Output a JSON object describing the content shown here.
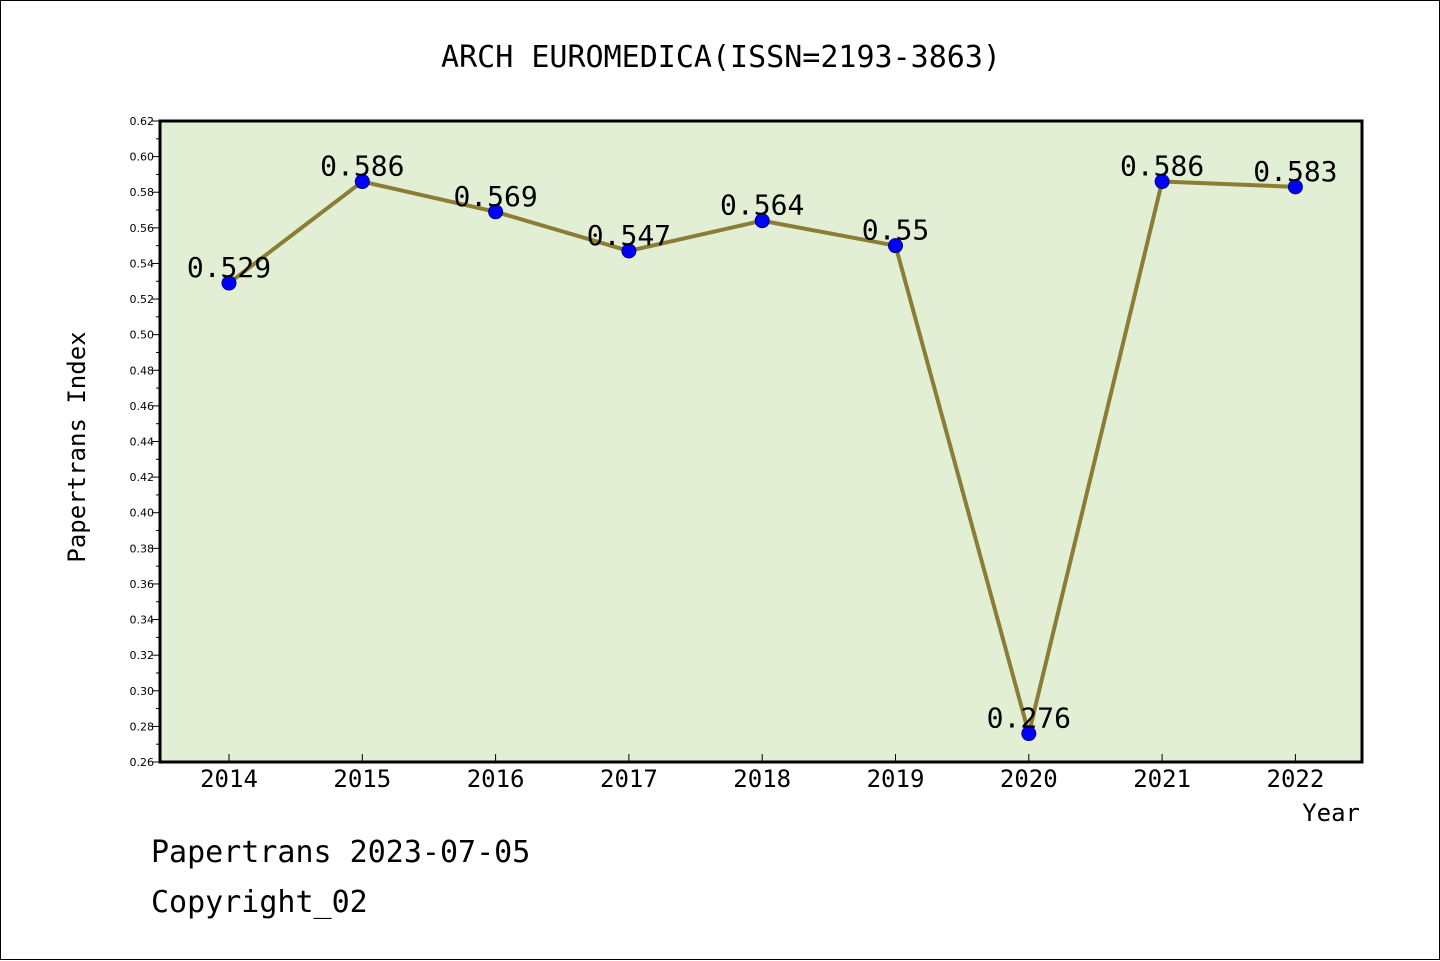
{
  "colors": {
    "plot_background": "#e2efd5",
    "line": "#8b7d35",
    "marker": "#0000ff",
    "marker_edge": "#000080",
    "axis": "#000000"
  },
  "chart_data": {
    "type": "line",
    "title": "ARCH EUROMEDICA(ISSN=2193-3863)",
    "xlabel": "Year",
    "ylabel": "Papertrans Index",
    "categories": [
      "2014",
      "2015",
      "2016",
      "2017",
      "2018",
      "2019",
      "2020",
      "2021",
      "2022"
    ],
    "series": [
      {
        "values": [
          0.529,
          0.586,
          0.569,
          0.547,
          0.564,
          0.55,
          0.276,
          0.586,
          0.583
        ],
        "labels": [
          "0.529",
          "0.586",
          "0.569",
          "0.547",
          "0.564",
          "0.55",
          "0.276",
          "0.586",
          "0.583"
        ]
      }
    ],
    "ylim": [
      0.26,
      0.62
    ],
    "yticks": [
      "0.26",
      "0.28",
      "0.30",
      "0.32",
      "0.34",
      "0.36",
      "0.38",
      "0.40",
      "0.42",
      "0.44",
      "0.46",
      "0.48",
      "0.50",
      "0.52",
      "0.54",
      "0.56",
      "0.58",
      "0.60",
      "0.62"
    ],
    "grid": false,
    "legend": "none"
  },
  "footer": {
    "line1": "Papertrans 2023-07-05",
    "line2": "Copyright_02"
  }
}
